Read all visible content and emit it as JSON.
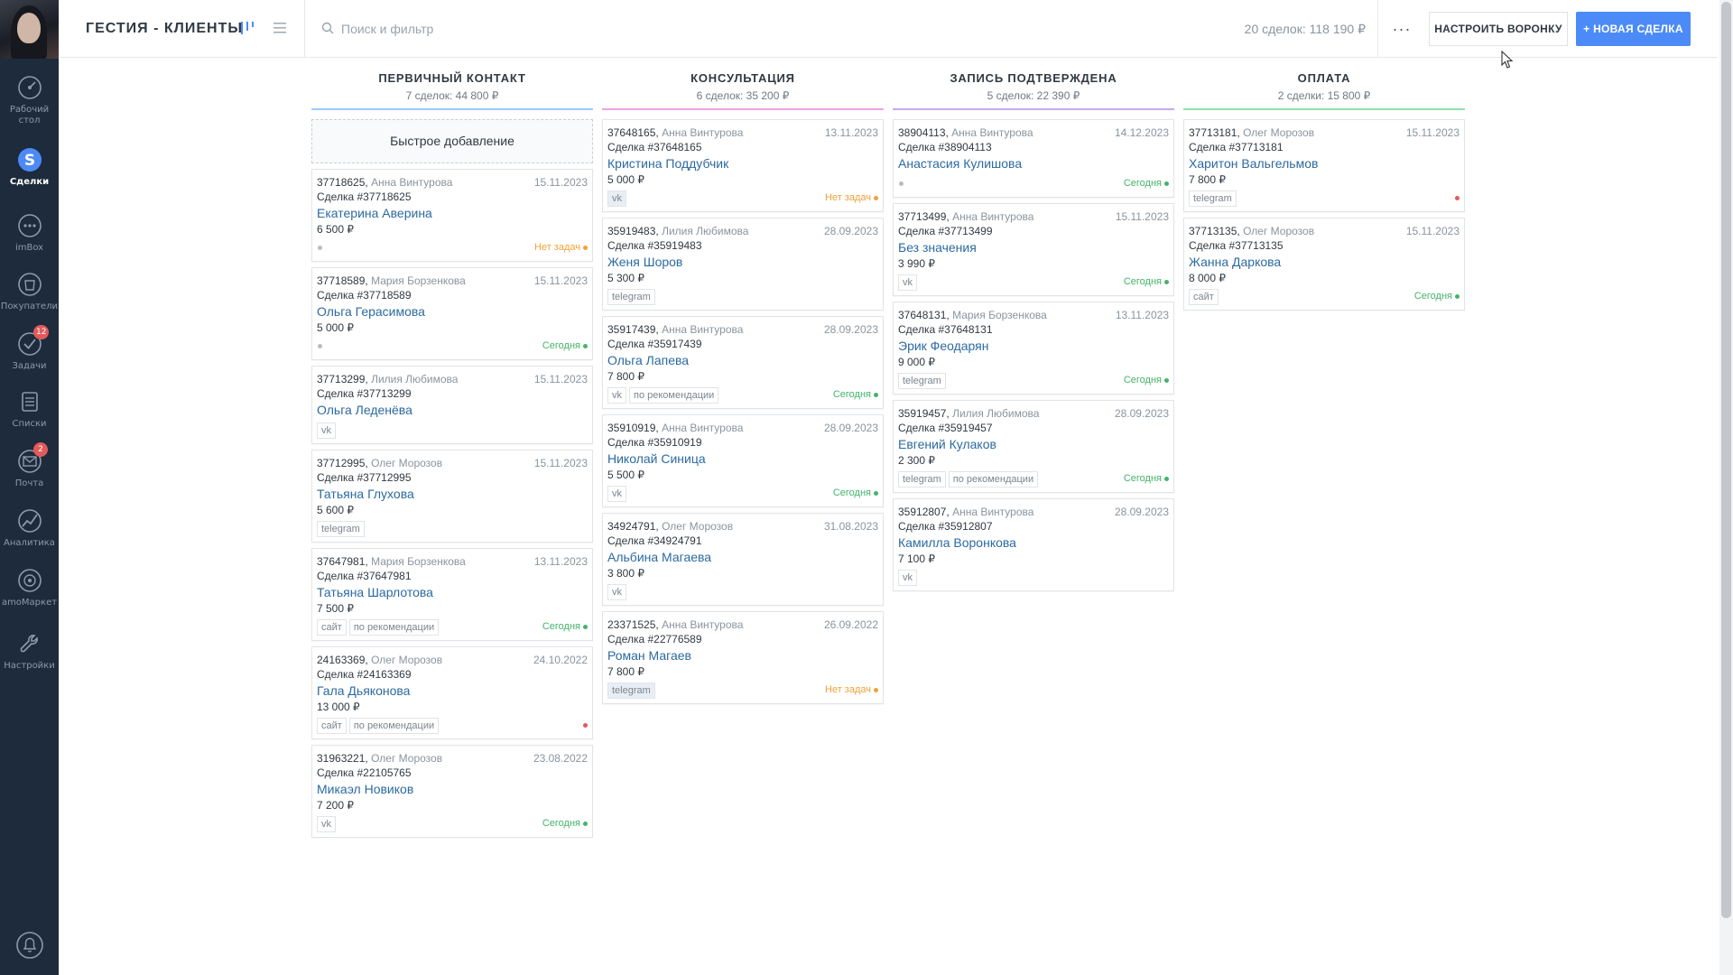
{
  "header": {
    "pipeline_title": "ГЕСТИЯ - КЛИЕНТЫ",
    "search_placeholder": "Поиск и фильтр",
    "summary": "20 сделок: 118 190 ₽",
    "more_label": "···",
    "setup_label": "НАСТРОИТЬ ВОРОНКУ",
    "new_deal_label": "+ НОВАЯ СДЕЛКА"
  },
  "sidebar": {
    "items": [
      {
        "label": "Рабочий\nстол",
        "icon": "dashboard-icon"
      },
      {
        "label": "Сделки",
        "icon": "deals-icon"
      },
      {
        "label": "imBox",
        "icon": "chat-icon"
      },
      {
        "label": "Покупатели",
        "icon": "customers-icon"
      },
      {
        "label": "Задачи",
        "icon": "tasks-icon",
        "badge": "12"
      },
      {
        "label": "Списки",
        "icon": "lists-icon"
      },
      {
        "label": "Почта",
        "icon": "mail-icon",
        "badge": "2"
      },
      {
        "label": "Аналитика",
        "icon": "analytics-icon"
      },
      {
        "label": "amoМаркет",
        "icon": "market-icon"
      },
      {
        "label": "Настройки",
        "icon": "settings-icon"
      }
    ]
  },
  "board": {
    "quick_add": "Быстрое добавление",
    "columns": [
      {
        "title": "ПЕРВИЧНЫЙ КОНТАКТ",
        "summary": "7 сделок: 44 800 ₽",
        "color": "#99ccff",
        "cards": [
          {
            "id": "37718625",
            "resp": "Анна Винтурова",
            "date": "15.11.2023",
            "deal": "Сделка #37718625",
            "contact": "Екатерина Аверина",
            "price": "6 500 ₽",
            "tags": [],
            "status": "Нет задач",
            "status_color": "#f0a238",
            "grey_dot": true
          },
          {
            "id": "37718589",
            "resp": "Мария Борзенкова",
            "date": "15.11.2023",
            "deal": "Сделка #37718589",
            "contact": "Ольга Герасимова",
            "price": "5 000 ₽",
            "tags": [],
            "status": "Сегодня",
            "status_color": "#45b36b",
            "grey_dot": true
          },
          {
            "id": "37713299",
            "resp": "Лилия Любимова",
            "date": "15.11.2023",
            "deal": "Сделка #37713299",
            "contact": "Ольга Леденёва",
            "price": "",
            "tags": [
              "vk"
            ],
            "status": "",
            "status_color": ""
          },
          {
            "id": "37712995",
            "resp": "Олег Морозов",
            "date": "15.11.2023",
            "deal": "Сделка #37712995",
            "contact": "Татьяна Глухова",
            "price": "5 600 ₽",
            "tags": [
              "telegram"
            ],
            "status": "",
            "status_color": ""
          },
          {
            "id": "37647981",
            "resp": "Мария Борзенкова",
            "date": "13.11.2023",
            "deal": "Сделка #37647981",
            "contact": "Татьяна Шарлотова",
            "price": "7 500 ₽",
            "tags": [
              "сайт",
              "по рекомендации"
            ],
            "status": "Сегодня",
            "status_color": "#45b36b"
          },
          {
            "id": "24163369",
            "resp": "Олег Морозов",
            "date": "24.10.2022",
            "deal": "Сделка #24163369",
            "contact": "Гала Дьяконова",
            "price": "13 000 ₽",
            "tags": [
              "сайт",
              "по рекомендации"
            ],
            "status": "",
            "status_color": "#e25a5a",
            "red_dot": true
          },
          {
            "id": "31963221",
            "resp": "Олег Морозов",
            "date": "23.08.2022",
            "deal": "Сделка #22105765",
            "contact": "Микаэл Новиков",
            "price": "7 200 ₽",
            "tags": [
              "vk"
            ],
            "status": "Сегодня",
            "status_color": "#45b36b"
          }
        ]
      },
      {
        "title": "КОНСУЛЬТАЦИЯ",
        "summary": "6 сделок: 35 200 ₽",
        "color": "#f0a3e0",
        "cards": [
          {
            "id": "37648165",
            "resp": "Анна Винтурова",
            "date": "13.11.2023",
            "deal": "Сделка #37648165",
            "contact": "Кристина Поддубчик",
            "price": "5 000 ₽",
            "tags": [
              "vk"
            ],
            "hl": true,
            "status": "Нет задач",
            "status_color": "#f0a238"
          },
          {
            "id": "35919483",
            "resp": "Лилия Любимова",
            "date": "28.09.2023",
            "deal": "Сделка #35919483",
            "contact": "Женя Шоров",
            "price": "5 300 ₽",
            "tags": [
              "telegram"
            ],
            "status": "",
            "status_color": ""
          },
          {
            "id": "35917439",
            "resp": "Анна Винтурова",
            "date": "28.09.2023",
            "deal": "Сделка #35917439",
            "contact": "Ольга Лапева",
            "price": "7 800 ₽",
            "tags": [
              "vk",
              "по рекомендации"
            ],
            "status": "Сегодня",
            "status_color": "#45b36b"
          },
          {
            "id": "35910919",
            "resp": "Анна Винтурова",
            "date": "28.09.2023",
            "deal": "Сделка #35910919",
            "contact": "Николай Синица",
            "price": "5 500 ₽",
            "tags": [
              "vk"
            ],
            "status": "Сегодня",
            "status_color": "#45b36b"
          },
          {
            "id": "34924791",
            "resp": "Олег Морозов",
            "date": "31.08.2023",
            "deal": "Сделка #34924791",
            "contact": "Альбина Магаева",
            "price": "3 800 ₽",
            "tags": [
              "vk"
            ],
            "status": "",
            "status_color": ""
          },
          {
            "id": "23371525",
            "resp": "Анна Винтурова",
            "date": "26.09.2022",
            "deal": "Сделка #22776589",
            "contact": "Роман Магаев",
            "price": "7 800 ₽",
            "tags": [
              "telegram"
            ],
            "hl": true,
            "status": "Нет задач",
            "status_color": "#f0a238"
          }
        ]
      },
      {
        "title": "ЗАПИСЬ ПОДТВЕРЖДЕНА",
        "summary": "5 сделок: 22 390 ₽",
        "color": "#c7a8f0",
        "cards": [
          {
            "id": "38904113",
            "resp": "Анна Винтурова",
            "date": "14.12.2023",
            "deal": "Сделка #38904113",
            "contact": "Анастасия Кулишова",
            "price": "",
            "tags": [],
            "status": "Сегодня",
            "status_color": "#45b36b",
            "grey_dot": true
          },
          {
            "id": "37713499",
            "resp": "Анна Винтурова",
            "date": "15.11.2023",
            "deal": "Сделка #37713499",
            "contact": "Без значения",
            "price": "3 990 ₽",
            "tags": [
              "vk"
            ],
            "status": "Сегодня",
            "status_color": "#45b36b"
          },
          {
            "id": "37648131",
            "resp": "Мария Борзенкова",
            "date": "13.11.2023",
            "deal": "Сделка #37648131",
            "contact": "Эрик Феодарян",
            "price": "9 000 ₽",
            "tags": [
              "telegram"
            ],
            "status": "Сегодня",
            "status_color": "#45b36b"
          },
          {
            "id": "35919457",
            "resp": "Лилия Любимова",
            "date": "28.09.2023",
            "deal": "Сделка #35919457",
            "contact": "Евгений Кулаков",
            "price": "2 300 ₽",
            "tags": [
              "telegram",
              "по рекомендации"
            ],
            "status": "Сегодня",
            "status_color": "#45b36b"
          },
          {
            "id": "35912807",
            "resp": "Анна Винтурова",
            "date": "28.09.2023",
            "deal": "Сделка #35912807",
            "contact": "Камилла Воронкова",
            "price": "7 100 ₽",
            "tags": [
              "vk"
            ],
            "status": "",
            "status_color": ""
          }
        ]
      },
      {
        "title": "ОПЛАТА",
        "summary": "2 сделки: 15 800 ₽",
        "color": "#8fe0a8",
        "cards": [
          {
            "id": "37713181",
            "resp": "Олег Морозов",
            "date": "15.11.2023",
            "deal": "Сделка #37713181",
            "contact": "Харитон Вальгельмов",
            "price": "7 800 ₽",
            "tags": [
              "telegram"
            ],
            "status": "",
            "status_color": "#e25a5a",
            "red_dot": true
          },
          {
            "id": "37713135",
            "resp": "Олег Морозов",
            "date": "15.11.2023",
            "deal": "Сделка #37713135",
            "contact": "Жанна Даркова",
            "price": "8 000 ₽",
            "tags": [
              "сайт"
            ],
            "status": "Сегодня",
            "status_color": "#45b36b"
          }
        ]
      }
    ]
  }
}
